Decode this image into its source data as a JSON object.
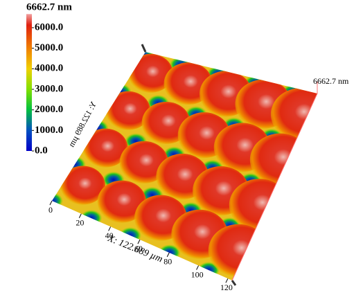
{
  "chart_data": {
    "type": "surface3d",
    "colorbar": {
      "title": "6662.7 nm",
      "lim": [
        0,
        6662.7
      ],
      "ticks": [
        {
          "value": 0,
          "label": "0.0"
        },
        {
          "value": 1000,
          "label": "1000.0"
        },
        {
          "value": 2000,
          "label": "2000.0"
        },
        {
          "value": 3000,
          "label": "3000.0"
        },
        {
          "value": 4000,
          "label": "4000.0"
        },
        {
          "value": 5000,
          "label": "5000.0"
        },
        {
          "value": 6000,
          "label": "6000.0"
        }
      ]
    },
    "x_label": "X: 122.889 µm",
    "xticks": [
      0,
      20,
      40,
      60,
      80,
      100,
      120
    ],
    "xlim": [
      0,
      122.889
    ],
    "y_label": "Y: 122.889 µm",
    "z_label": "6662.7 nm"
  }
}
